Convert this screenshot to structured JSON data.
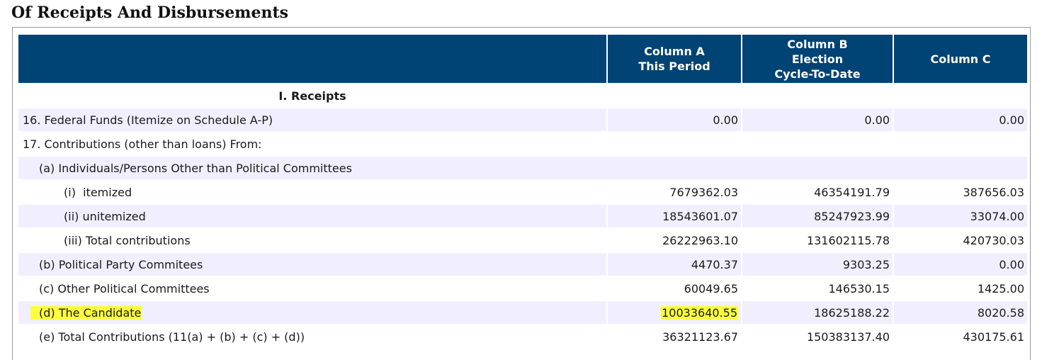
{
  "page": {
    "title": "Of Receipts And Disbursements"
  },
  "columns": {
    "a": [
      "Column A",
      "This Period"
    ],
    "b": [
      "Column B",
      "Election",
      "Cycle-To-Date"
    ],
    "c": [
      "Column C"
    ]
  },
  "section": {
    "receipts_title": "I. Receipts"
  },
  "highlight_color": "#fbff3c",
  "header_color": "#004375",
  "shade_color": "#f1efff",
  "rows": [
    {
      "label": "16. Federal Funds (Itemize on Schedule A-P)",
      "a": "0.00",
      "b": "0.00",
      "c": "0.00"
    },
    {
      "label": "17. Contributions (other than loans) From:",
      "a": "",
      "b": "",
      "c": ""
    },
    {
      "label": "(a) Individuals/Persons Other than Political Committees",
      "a": "",
      "b": "",
      "c": ""
    },
    {
      "label": "(i)  itemized",
      "a": "7679362.03",
      "b": "46354191.79",
      "c": "387656.03"
    },
    {
      "label": "(ii) unitemized",
      "a": "18543601.07",
      "b": "85247923.99",
      "c": "33074.00"
    },
    {
      "label": "(iii) Total contributions",
      "a": "26222963.10",
      "b": "131602115.78",
      "c": "420730.03"
    },
    {
      "label": "(b) Political Party Commitees",
      "a": "4470.37",
      "b": "9303.25",
      "c": "0.00"
    },
    {
      "label": "(c) Other Political Committees",
      "a": "60049.65",
      "b": "146530.15",
      "c": "1425.00"
    },
    {
      "label": "(d) The Candidate",
      "a": "10033640.55",
      "b": "18625188.22",
      "c": "8020.58"
    },
    {
      "label": "(e) Total Contributions (11(a) + (b) + (c) + (d))",
      "a": "36321123.67",
      "b": "150383137.40",
      "c": "430175.61"
    }
  ]
}
